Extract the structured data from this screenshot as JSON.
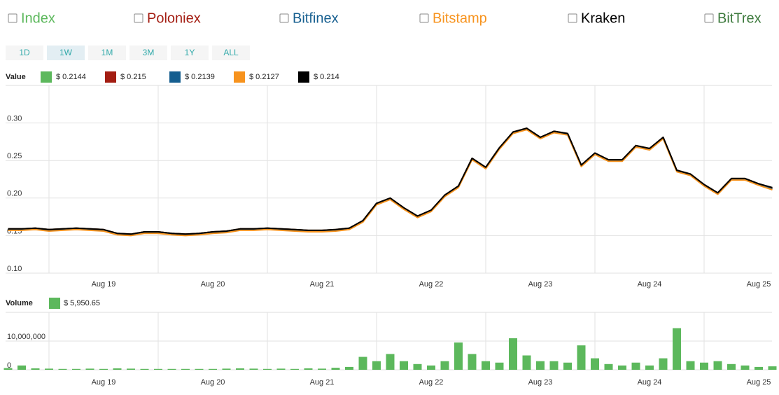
{
  "other_exchanges": [
    {
      "name": "BitTrex",
      "color": "#3d7a3d"
    }
  ],
  "ranges": {
    "items": [
      "1D",
      "1W",
      "1M",
      "3M",
      "1Y",
      "ALL"
    ],
    "active": 1
  },
  "chart_data": [
    {
      "type": "line",
      "legend_title": "Value",
      "categories": [
        null,
        null,
        null,
        null,
        null,
        null,
        null,
        "Aug 19",
        null,
        null,
        null,
        null,
        null,
        null,
        null,
        "Aug 20",
        null,
        null,
        null,
        null,
        null,
        null,
        null,
        "Aug 21",
        null,
        null,
        null,
        null,
        null,
        null,
        null,
        "Aug 22",
        null,
        null,
        null,
        null,
        null,
        null,
        null,
        "Aug 23",
        null,
        null,
        null,
        null,
        null,
        null,
        null,
        "Aug 24",
        null,
        null,
        null,
        null,
        null,
        null,
        null,
        "Aug 25",
        null
      ],
      "ylim": [
        0.1,
        0.35
      ],
      "yticks": [
        {
          "value": 0.1,
          "label": "0.10"
        },
        0.15,
        {
          "value": 0.2,
          "label": "0.20"
        },
        0.25,
        {
          "value": 0.3,
          "label": "0.30"
        }
      ],
      "grid": true,
      "series": [
        {
          "name": "Index",
          "color": "#5cb85c",
          "value_label": "$ 0.2144",
          "values": [
            0.159,
            0.159,
            0.16,
            0.158,
            0.159,
            0.16,
            0.159,
            0.158,
            0.153,
            0.152,
            0.155,
            0.155,
            0.153,
            0.152,
            0.153,
            0.155,
            0.156,
            0.159,
            0.159,
            0.16,
            0.159,
            0.158,
            0.157,
            0.157,
            0.158,
            0.16,
            0.17,
            0.193,
            0.2,
            0.187,
            0.176,
            0.184,
            0.204,
            0.216,
            0.253,
            0.241,
            0.267,
            0.288,
            0.293,
            0.281,
            0.289,
            0.286,
            0.244,
            0.26,
            0.251,
            0.251,
            0.27,
            0.266,
            0.281,
            0.237,
            0.232,
            0.218,
            0.207,
            0.226,
            0.226,
            0.219,
            0.213
          ]
        },
        {
          "name": "Poloniex",
          "color": "#a31d12",
          "value_label": "$ 0.215",
          "values": [
            0.159,
            0.159,
            0.16,
            0.158,
            0.159,
            0.16,
            0.159,
            0.158,
            0.153,
            0.152,
            0.155,
            0.155,
            0.153,
            0.152,
            0.153,
            0.155,
            0.156,
            0.159,
            0.159,
            0.16,
            0.159,
            0.158,
            0.157,
            0.157,
            0.158,
            0.16,
            0.17,
            0.193,
            0.2,
            0.187,
            0.176,
            0.184,
            0.204,
            0.216,
            0.253,
            0.241,
            0.267,
            0.288,
            0.293,
            0.281,
            0.289,
            0.286,
            0.244,
            0.26,
            0.251,
            0.251,
            0.27,
            0.266,
            0.281,
            0.237,
            0.232,
            0.218,
            0.207,
            0.226,
            0.226,
            0.219,
            0.213
          ]
        },
        {
          "name": "Bitfinex",
          "color": "#155e8f",
          "value_label": "$ 0.2139",
          "values": [
            0.158,
            0.158,
            0.159,
            0.157,
            0.158,
            0.159,
            0.158,
            0.157,
            0.152,
            0.151,
            0.154,
            0.154,
            0.152,
            0.151,
            0.152,
            0.154,
            0.155,
            0.158,
            0.158,
            0.159,
            0.158,
            0.157,
            0.156,
            0.156,
            0.157,
            0.159,
            0.169,
            0.192,
            0.199,
            0.186,
            0.175,
            0.183,
            0.203,
            0.215,
            0.252,
            0.24,
            0.266,
            0.287,
            0.292,
            0.28,
            0.288,
            0.285,
            0.243,
            0.259,
            0.25,
            0.25,
            0.269,
            0.265,
            0.28,
            0.236,
            0.231,
            0.217,
            0.206,
            0.225,
            0.225,
            0.218,
            0.212
          ]
        },
        {
          "name": "Bitstamp",
          "color": "#f7931e",
          "value_label": "$ 0.2127",
          "values": [
            0.157,
            0.157,
            0.158,
            0.156,
            0.157,
            0.158,
            0.157,
            0.156,
            0.151,
            0.15,
            0.153,
            0.153,
            0.151,
            0.15,
            0.151,
            0.153,
            0.154,
            0.157,
            0.157,
            0.158,
            0.157,
            0.156,
            0.155,
            0.155,
            0.156,
            0.158,
            0.168,
            0.191,
            0.198,
            0.185,
            0.174,
            0.182,
            0.202,
            0.214,
            0.251,
            0.239,
            0.265,
            0.286,
            0.291,
            0.279,
            0.287,
            0.284,
            0.242,
            0.258,
            0.249,
            0.249,
            0.268,
            0.264,
            0.279,
            0.235,
            0.23,
            0.216,
            0.205,
            0.224,
            0.224,
            0.217,
            0.211
          ]
        },
        {
          "name": "Kraken",
          "color": "#000000",
          "value_label": "$ 0.214",
          "values": [
            0.159,
            0.159,
            0.16,
            0.158,
            0.159,
            0.16,
            0.159,
            0.158,
            0.153,
            0.152,
            0.155,
            0.155,
            0.153,
            0.152,
            0.153,
            0.155,
            0.156,
            0.159,
            0.159,
            0.16,
            0.159,
            0.158,
            0.157,
            0.157,
            0.158,
            0.16,
            0.17,
            0.193,
            0.2,
            0.187,
            0.176,
            0.184,
            0.204,
            0.216,
            0.253,
            0.241,
            0.267,
            0.288,
            0.293,
            0.281,
            0.289,
            0.286,
            0.244,
            0.26,
            0.251,
            0.251,
            0.27,
            0.266,
            0.281,
            0.237,
            0.232,
            0.218,
            0.207,
            0.226,
            0.226,
            0.219,
            0.214
          ]
        }
      ]
    },
    {
      "type": "bar",
      "legend_title": "Volume",
      "value_label": "$ 5,950.65",
      "color": "#5cb85c",
      "categories": [
        null,
        null,
        null,
        null,
        null,
        null,
        null,
        "Aug 19",
        null,
        null,
        null,
        null,
        null,
        null,
        null,
        "Aug 20",
        null,
        null,
        null,
        null,
        null,
        null,
        null,
        "Aug 21",
        null,
        null,
        null,
        null,
        null,
        null,
        null,
        "Aug 22",
        null,
        null,
        null,
        null,
        null,
        null,
        null,
        "Aug 23",
        null,
        null,
        null,
        null,
        null,
        null,
        null,
        "Aug 24",
        null,
        null,
        null,
        null,
        null,
        null,
        null,
        "Aug 25",
        null
      ],
      "values": [
        600000,
        1500000,
        500000,
        400000,
        300000,
        300000,
        400000,
        300000,
        500000,
        400000,
        300000,
        300000,
        300000,
        300000,
        300000,
        300000,
        400000,
        500000,
        400000,
        300000,
        400000,
        300000,
        500000,
        400000,
        700000,
        1000000,
        4500000,
        3000000,
        5500000,
        3000000,
        2000000,
        1500000,
        3000000,
        9500000,
        5500000,
        3000000,
        2500000,
        11000000,
        5000000,
        3000000,
        3000000,
        2500000,
        8500000,
        4000000,
        2000000,
        1500000,
        2500000,
        1500000,
        4000000,
        14500000,
        3000000,
        2500000,
        3000000,
        2000000,
        1500000,
        1000000,
        1200000
      ],
      "ylim": [
        0,
        20000000
      ],
      "yticks": [
        0,
        {
          "value": 10000000,
          "label": "10,000,000"
        }
      ],
      "grid": true
    }
  ]
}
